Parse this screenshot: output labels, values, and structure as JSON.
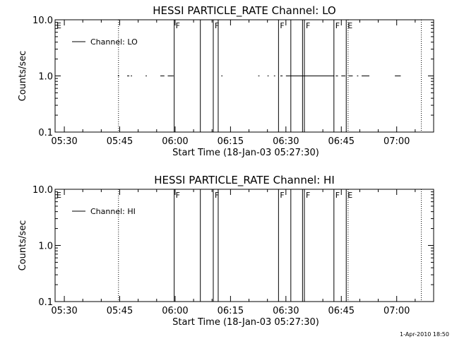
{
  "footer": {
    "timestamp": "1-Apr-2010 18:50"
  },
  "chart_data": [
    {
      "type": "line",
      "title": "HESSI PARTICLE_RATE Channel: LO",
      "xlabel": "Start Time (18-Jan-03 05:27:30)",
      "ylabel": "Counts/sec",
      "yscale": "log",
      "ylim": [
        0.1,
        10.0
      ],
      "xlim": [
        "05:27:30",
        "07:10:00"
      ],
      "x_ticks": [
        "05:30",
        "05:45",
        "06:00",
        "06:15",
        "06:30",
        "06:45",
        "07:00"
      ],
      "y_ticks": [
        "0.1",
        "1.0",
        "10.0"
      ],
      "grid": false,
      "legend": {
        "position": "top-left",
        "entries": [
          "Channel: LO"
        ]
      },
      "series": [
        {
          "name": "Channel: LO",
          "segments": [
            [
              "05:44:30",
              "05:44:45"
            ],
            [
              "05:47:00",
              "05:47:30"
            ],
            [
              "05:48:00",
              "05:48:15"
            ],
            [
              "05:52:00",
              "05:52:15"
            ],
            [
              "05:56:00",
              "05:57:00"
            ],
            [
              "05:58:00",
              "05:59:30"
            ],
            [
              "06:12:30",
              "06:12:45"
            ],
            [
              "06:22:30",
              "06:22:45"
            ],
            [
              "06:25:00",
              "06:25:15"
            ],
            [
              "06:26:45",
              "06:27:00"
            ],
            [
              "06:28:30",
              "06:29:00"
            ],
            [
              "06:30:00",
              "06:43:00"
            ],
            [
              "06:43:30",
              "06:44:00"
            ],
            [
              "06:45:00",
              "06:46:00"
            ],
            [
              "06:47:00",
              "06:48:00"
            ],
            [
              "06:49:15",
              "06:49:30"
            ],
            [
              "06:50:30",
              "06:52:30"
            ],
            [
              "06:59:30",
              "07:01:00"
            ]
          ],
          "value": 1.0
        }
      ],
      "solid_markers": [
        "05:59:45",
        "06:06:50",
        "06:10:20",
        "06:11:40",
        "06:28:00",
        "06:31:20",
        "06:34:30",
        "06:35:00",
        "06:43:00",
        "06:46:20"
      ],
      "dotted_markers": [
        "05:44:40",
        "06:46:50",
        "07:06:40"
      ],
      "flags": [
        {
          "x": "05:27:30",
          "label": "E"
        },
        {
          "x": "05:59:45",
          "label": "F"
        },
        {
          "x": "06:10:20",
          "label": "F"
        },
        {
          "x": "06:28:00",
          "label": "F"
        },
        {
          "x": "06:35:00",
          "label": "F"
        },
        {
          "x": "06:43:00",
          "label": "F"
        },
        {
          "x": "06:46:20",
          "label": "E"
        }
      ]
    },
    {
      "type": "line",
      "title": "HESSI PARTICLE_RATE Channel: HI",
      "xlabel": "Start Time (18-Jan-03 05:27:30)",
      "ylabel": "Counts/sec",
      "yscale": "log",
      "ylim": [
        0.1,
        10.0
      ],
      "xlim": [
        "05:27:30",
        "07:10:00"
      ],
      "x_ticks": [
        "05:30",
        "05:45",
        "06:00",
        "06:15",
        "06:30",
        "06:45",
        "07:00"
      ],
      "y_ticks": [
        "0.1",
        "1.0",
        "10.0"
      ],
      "grid": false,
      "legend": {
        "position": "top-left",
        "entries": [
          "Channel: HI"
        ]
      },
      "series": [
        {
          "name": "Channel: HI",
          "segments": [],
          "value": 1.0
        }
      ],
      "solid_markers": [
        "05:59:45",
        "06:06:50",
        "06:10:20",
        "06:11:40",
        "06:28:00",
        "06:31:20",
        "06:34:30",
        "06:35:00",
        "06:43:00",
        "06:46:20"
      ],
      "dotted_markers": [
        "05:44:40",
        "06:46:50",
        "07:06:40"
      ],
      "flags": [
        {
          "x": "05:27:30",
          "label": "E"
        },
        {
          "x": "05:59:45",
          "label": "F"
        },
        {
          "x": "06:10:20",
          "label": "F"
        },
        {
          "x": "06:28:00",
          "label": "F"
        },
        {
          "x": "06:35:00",
          "label": "F"
        },
        {
          "x": "06:43:00",
          "label": "F"
        },
        {
          "x": "06:46:20",
          "label": "E"
        }
      ]
    }
  ]
}
